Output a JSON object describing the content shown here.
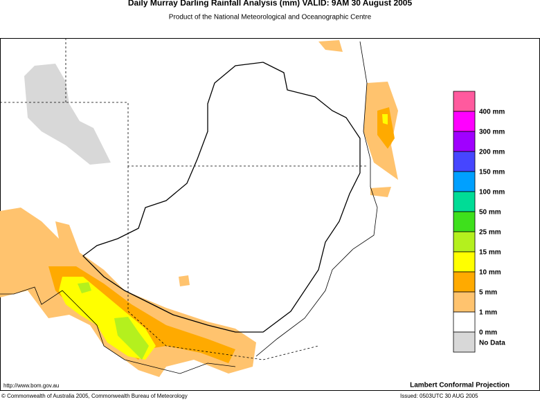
{
  "header": {
    "title": "Daily Murray Darling Rainfall Analysis (mm)  VALID: 9AM 30 August 2005",
    "subtitle": "Product of the National Meteorological and Oceanographic Centre"
  },
  "legend": {
    "items": [
      {
        "label": "400 mm",
        "color": "#ff5a9e"
      },
      {
        "label": "300 mm",
        "color": "#ff00ff"
      },
      {
        "label": "200 mm",
        "color": "#a000ff"
      },
      {
        "label": "150 mm",
        "color": "#4646ff"
      },
      {
        "label": "100 mm",
        "color": "#00a0ff"
      },
      {
        "label": "50 mm",
        "color": "#00dc96"
      },
      {
        "label": "25 mm",
        "color": "#3ee01c"
      },
      {
        "label": "15 mm",
        "color": "#b4f01e"
      },
      {
        "label": "10 mm",
        "color": "#ffff00"
      },
      {
        "label": "5 mm",
        "color": "#ffaa00"
      },
      {
        "label": "1 mm",
        "color": "#ffc36e"
      },
      {
        "label": "0 mm",
        "color": "#ffffff"
      },
      {
        "label": "No Data",
        "color": "#d8d8d8"
      }
    ]
  },
  "footer": {
    "url": "http://www.bom.gov.au",
    "projection": "Lambert Conformal Projection",
    "copyright": "© Commonwealth of Australia 2005, Commonwealth Bureau of Meteorology",
    "issued": "Issued: 0503UTC 30 AUG 2005"
  }
}
